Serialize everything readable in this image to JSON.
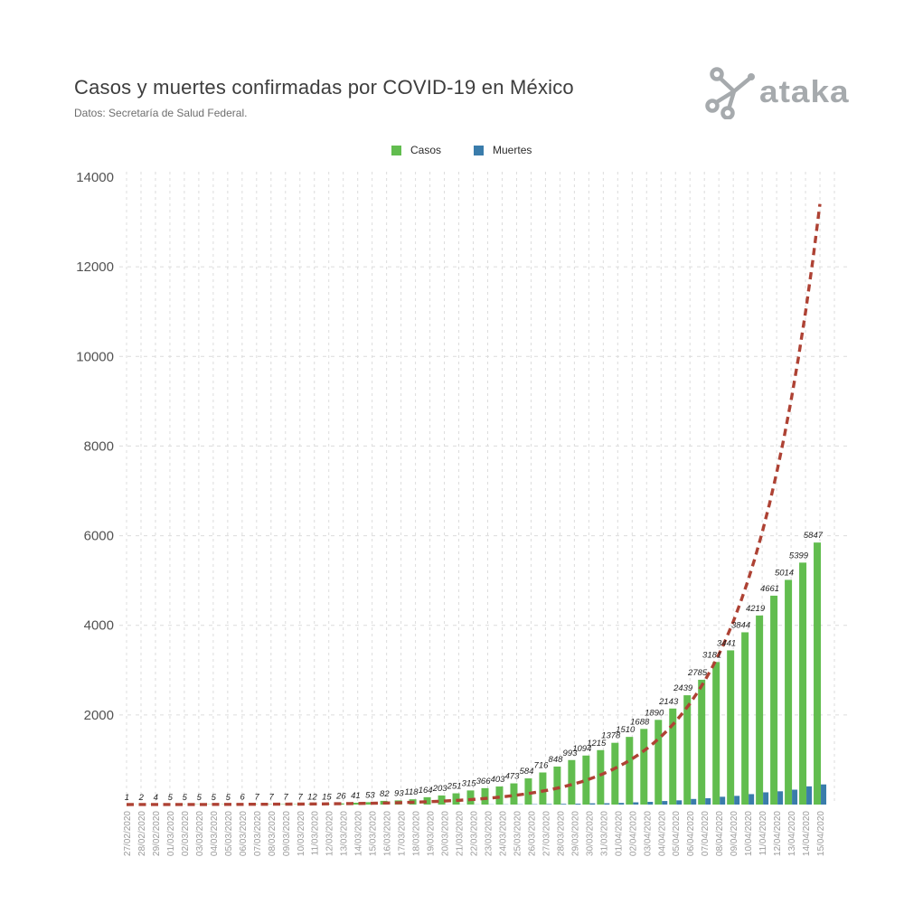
{
  "page": {
    "title": "Casos y muertes confirmadas por COVID-19 en México",
    "subtitle": "Datos: Secretaría de Salud Federal.",
    "logo_text": "ataka"
  },
  "legend": {
    "casos_label": "Casos",
    "muertes_label": "Muertes"
  },
  "chart_data": {
    "type": "bar",
    "title": "Casos y muertes confirmadas por COVID-19 en México",
    "xlabel": "",
    "ylabel": "",
    "ylim": [
      0,
      14000
    ],
    "yticks": [
      2000,
      4000,
      6000,
      8000,
      10000,
      12000,
      14000
    ],
    "grid": true,
    "legend_position": "top-center",
    "categories": [
      "27/02/2020",
      "28/02/2020",
      "29/02/2020",
      "01/03/2020",
      "02/03/2020",
      "03/03/2020",
      "04/03/2020",
      "05/03/2020",
      "06/03/2020",
      "07/03/2020",
      "08/03/2020",
      "09/03/2020",
      "10/03/2020",
      "11/03/2020",
      "12/03/2020",
      "13/03/2020",
      "14/03/2020",
      "15/03/2020",
      "16/03/2020",
      "17/03/2020",
      "18/03/2020",
      "19/03/2020",
      "20/03/2020",
      "21/03/2020",
      "22/03/2020",
      "23/03/2020",
      "24/03/2020",
      "25/03/2020",
      "26/03/2020",
      "27/03/2020",
      "28/03/2020",
      "29/03/2020",
      "30/03/2020",
      "31/03/2020",
      "01/04/2020",
      "02/04/2020",
      "03/04/2020",
      "04/04/2020",
      "05/04/2020",
      "06/04/2020",
      "07/04/2020",
      "08/04/2020",
      "09/04/2020",
      "10/04/2020",
      "11/04/2020",
      "12/04/2020",
      "13/04/2020",
      "14/04/2020",
      "15/04/2020"
    ],
    "series": [
      {
        "name": "Casos",
        "color": "#62bd4f",
        "labels_visible": true,
        "values": [
          1,
          2,
          4,
          5,
          5,
          5,
          5,
          5,
          6,
          7,
          7,
          7,
          7,
          12,
          15,
          26,
          41,
          53,
          82,
          93,
          118,
          164,
          203,
          251,
          315,
          366,
          403,
          473,
          584,
          716,
          848,
          993,
          1094,
          1215,
          1378,
          1510,
          1688,
          1890,
          2143,
          2439,
          2785,
          3181,
          3441,
          3844,
          4219,
          4661,
          5014,
          5399,
          5847
        ]
      },
      {
        "name": "Muertes",
        "color": "#3a7cab",
        "labels_visible": false,
        "values": [
          0,
          0,
          0,
          0,
          0,
          0,
          0,
          0,
          0,
          0,
          0,
          0,
          0,
          0,
          0,
          0,
          0,
          0,
          0,
          0,
          1,
          1,
          2,
          2,
          3,
          4,
          5,
          6,
          8,
          12,
          16,
          20,
          28,
          29,
          37,
          50,
          60,
          79,
          94,
          125,
          141,
          174,
          194,
          233,
          273,
          296,
          332,
          406,
          449
        ]
      }
    ],
    "trend_line": {
      "type": "exponential",
      "style": "dashed",
      "color": "#ae4234",
      "start_value": 1,
      "end_value": 13400
    }
  }
}
